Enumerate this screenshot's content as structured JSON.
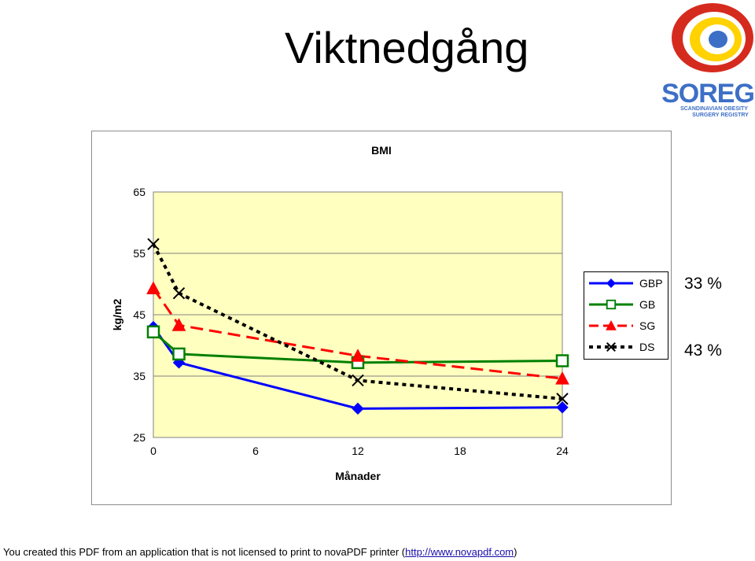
{
  "slide": {
    "title": "Viktnedgång",
    "percent_1": "33 %",
    "percent_2": "43 %",
    "footer_text": "You created this PDF from an application that is not licensed to print to novaPDF printer (",
    "footer_url": "http://www.novapdf.com",
    "footer_close": ")"
  },
  "logo": {
    "text": "SOREG",
    "subtitle_1": "SCANDINAVIAN OBESITY",
    "subtitle_2": "SURGERY REGISTRY",
    "colors": {
      "red": "#d52b1e",
      "yellow": "#ffd200",
      "blue": "#3d6fc6"
    }
  },
  "chart_data": {
    "type": "line",
    "title": "BMI",
    "xlabel": "Månader",
    "ylabel": "kg/m2",
    "xlim": [
      0,
      24
    ],
    "ylim": [
      25,
      65
    ],
    "x_ticks": [
      0,
      6,
      12,
      18,
      24
    ],
    "y_ticks": [
      25,
      35,
      45,
      55,
      65
    ],
    "grid": true,
    "plot_background": "#ffffc0",
    "legend_position": "right",
    "series": [
      {
        "name": "GBP",
        "color": "#0000ff",
        "dash": "solid",
        "marker": "diamond",
        "x": [
          0,
          1.5,
          12,
          24
        ],
        "y": [
          43.0,
          37.2,
          29.7,
          29.9
        ]
      },
      {
        "name": "GB",
        "color": "#008000",
        "dash": "solid",
        "marker": "square",
        "x": [
          0,
          1.5,
          12,
          24
        ],
        "y": [
          42.2,
          38.6,
          37.2,
          37.5
        ]
      },
      {
        "name": "SG",
        "color": "#ff0000",
        "dash": "dashed",
        "marker": "triangle",
        "x": [
          0,
          1.5,
          12,
          24
        ],
        "y": [
          49.3,
          43.3,
          38.3,
          34.6
        ]
      },
      {
        "name": "DS",
        "color": "#000000",
        "dash": "dotted",
        "marker": "x",
        "x": [
          0,
          1.5,
          12,
          24
        ],
        "y": [
          56.5,
          48.5,
          34.3,
          31.3
        ]
      }
    ]
  }
}
